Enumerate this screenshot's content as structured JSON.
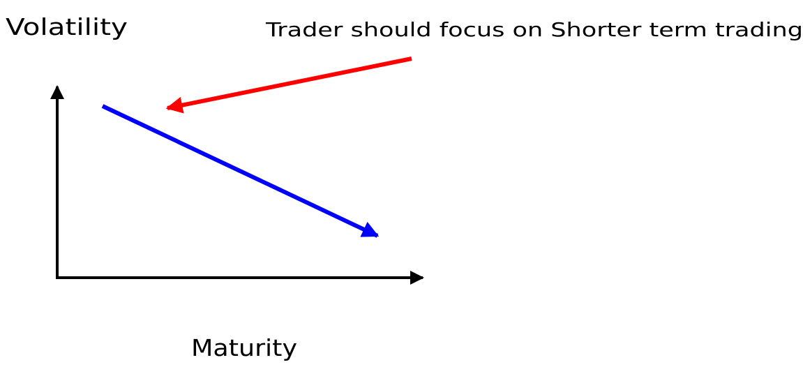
{
  "y_axis_label": "Volatility",
  "x_axis_label": "Maturity",
  "annotation": "Trader should focus on Shorter term trading"
}
